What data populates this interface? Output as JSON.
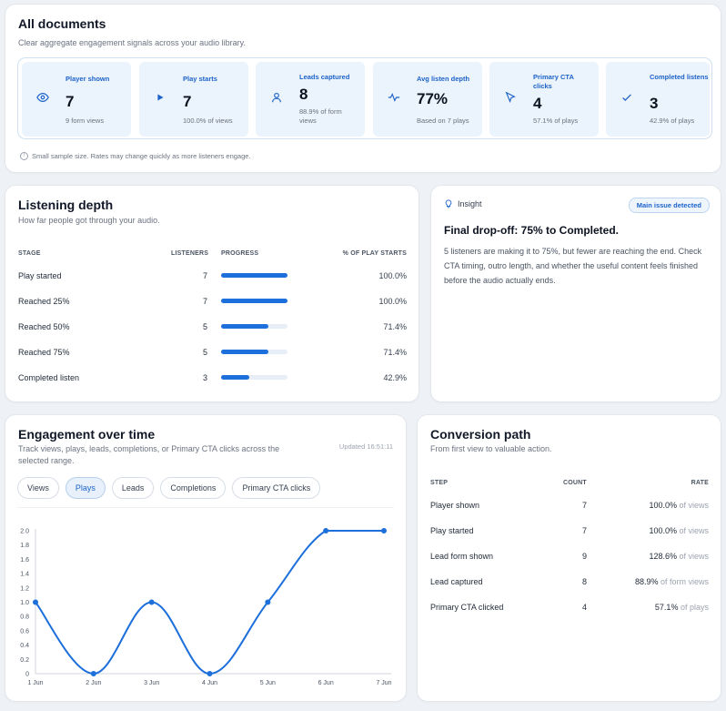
{
  "summary": {
    "title": "All documents",
    "subtitle": "Clear aggregate engagement signals across your audio library.",
    "stats": [
      {
        "label": "Player shown",
        "value": "7",
        "note": "9 form views",
        "icon": "eye-icon"
      },
      {
        "label": "Play starts",
        "value": "7",
        "note": "100.0% of views",
        "icon": "play-icon"
      },
      {
        "label": "Leads captured",
        "value": "8",
        "note": "88.9% of form views",
        "icon": "user-icon"
      },
      {
        "label": "Avg listen depth",
        "value": "77%",
        "note": "Based on 7 plays",
        "icon": "pulse-icon"
      },
      {
        "label": "Primary CTA clicks",
        "value": "4",
        "note": "57.1% of plays",
        "icon": "cursor-icon"
      },
      {
        "label": "Completed listens",
        "value": "3",
        "note": "42.9% of plays",
        "icon": "check-icon"
      }
    ],
    "footnote": "Small sample size. Rates may change quickly as more listeners engage."
  },
  "depth": {
    "title": "Listening depth",
    "subtitle": "How far people got through your audio.",
    "headers": {
      "stage": "STAGE",
      "listeners": "LISTENERS",
      "progress": "PROGRESS",
      "pct": "% OF PLAY STARTS"
    },
    "rows": [
      {
        "stage": "Play started",
        "listeners": "7",
        "pct": "100.0%",
        "fraction": 1.0
      },
      {
        "stage": "Reached 25%",
        "listeners": "7",
        "pct": "100.0%",
        "fraction": 1.0
      },
      {
        "stage": "Reached 50%",
        "listeners": "5",
        "pct": "71.4%",
        "fraction": 0.714
      },
      {
        "stage": "Reached 75%",
        "listeners": "5",
        "pct": "71.4%",
        "fraction": 0.714
      },
      {
        "stage": "Completed listen",
        "listeners": "3",
        "pct": "42.9%",
        "fraction": 0.429
      }
    ]
  },
  "insight": {
    "tag": "Insight",
    "badge": "Main issue detected",
    "title": "Final drop-off: 75% to Completed.",
    "body": "5 listeners are making it to 75%, but fewer are reaching the end. Check CTA timing, outro length, and whether the useful content feels finished before the audio actually ends."
  },
  "engagement": {
    "title": "Engagement over time",
    "subtitle": "Track views, plays, leads, completions, or Primary CTA clicks across the selected range.",
    "updated": "Updated 16:51:11",
    "tabs": [
      "Views",
      "Plays",
      "Leads",
      "Completions",
      "Primary CTA clicks"
    ],
    "active_tab": "Plays"
  },
  "chart_data": {
    "type": "line",
    "x": [
      "1 Jun",
      "2 Jun",
      "3 Jun",
      "4 Jun",
      "5 Jun",
      "6 Jun",
      "7 Jun"
    ],
    "series": [
      {
        "values": [
          1,
          0,
          1,
          0,
          1,
          2,
          2
        ]
      }
    ],
    "ylim": [
      0,
      2
    ],
    "yticks": [
      "0",
      "0.2",
      "0.4",
      "0.6",
      "0.8",
      "1.0",
      "1.2",
      "1.4",
      "1.6",
      "1.8",
      "2.0"
    ],
    "color": "#1d6fdc",
    "grid": false
  },
  "conversion": {
    "title": "Conversion path",
    "subtitle": "From first view to valuable action.",
    "headers": {
      "step": "STEP",
      "count": "COUNT",
      "rate": "RATE"
    },
    "rows": [
      {
        "step": "Player shown",
        "count": "7",
        "rate": "100.0%",
        "of": "of views"
      },
      {
        "step": "Play started",
        "count": "7",
        "rate": "100.0%",
        "of": "of views"
      },
      {
        "step": "Lead form shown",
        "count": "9",
        "rate": "128.6%",
        "of": "of views"
      },
      {
        "step": "Lead captured",
        "count": "8",
        "rate": "88.9%",
        "of": "of form views"
      },
      {
        "step": "Primary CTA clicked",
        "count": "4",
        "rate": "57.1%",
        "of": "of plays"
      }
    ]
  }
}
